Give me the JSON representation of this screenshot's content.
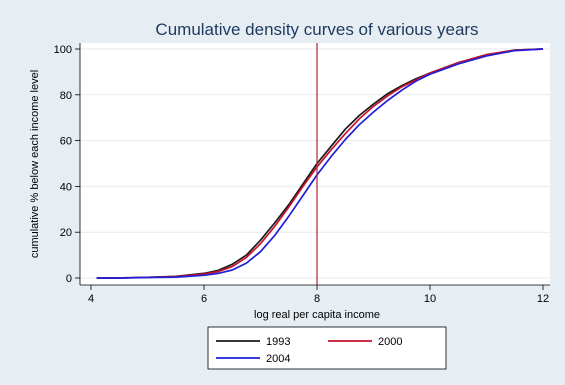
{
  "chart_data": {
    "type": "line",
    "title": "Cumulative density curves of various years",
    "xlabel": "log real per capita income",
    "ylabel": "cumulative % below each income level",
    "xlim": [
      4,
      12
    ],
    "ylim": [
      0,
      100
    ],
    "xticks": [
      4,
      6,
      8,
      10,
      12
    ],
    "yticks": [
      0,
      20,
      40,
      60,
      80,
      100
    ],
    "grid": "horizontal",
    "legend_position": "bottom",
    "reference_line": {
      "x": 8,
      "color": "#b22234"
    },
    "series": [
      {
        "name": "1993",
        "color": "#1a1a1a",
        "points": [
          [
            4.1,
            0
          ],
          [
            4.5,
            0
          ],
          [
            5,
            0.3
          ],
          [
            5.5,
            0.7
          ],
          [
            6,
            2.0
          ],
          [
            6.25,
            3.3
          ],
          [
            6.5,
            6.0
          ],
          [
            6.75,
            10.0
          ],
          [
            7,
            16.5
          ],
          [
            7.25,
            24
          ],
          [
            7.5,
            32
          ],
          [
            7.75,
            41
          ],
          [
            8,
            50
          ],
          [
            8.25,
            57.5
          ],
          [
            8.5,
            65
          ],
          [
            8.75,
            71
          ],
          [
            9,
            76
          ],
          [
            9.25,
            80.5
          ],
          [
            9.5,
            84
          ],
          [
            9.75,
            87
          ],
          [
            10,
            89.5
          ],
          [
            10.5,
            94
          ],
          [
            11,
            97.5
          ],
          [
            11.5,
            99.5
          ],
          [
            12,
            100
          ]
        ]
      },
      {
        "name": "2000",
        "color": "#c8102e",
        "points": [
          [
            4.1,
            0
          ],
          [
            4.5,
            0
          ],
          [
            5,
            0.3
          ],
          [
            5.5,
            0.6
          ],
          [
            6,
            1.7
          ],
          [
            6.25,
            2.8
          ],
          [
            6.5,
            5.0
          ],
          [
            6.75,
            9.0
          ],
          [
            7,
            15.0
          ],
          [
            7.25,
            22.5
          ],
          [
            7.5,
            31
          ],
          [
            7.75,
            40
          ],
          [
            8,
            48.5
          ],
          [
            8.25,
            56
          ],
          [
            8.5,
            63
          ],
          [
            8.75,
            69.5
          ],
          [
            9,
            75
          ],
          [
            9.25,
            79.5
          ],
          [
            9.5,
            83.5
          ],
          [
            9.75,
            86.5
          ],
          [
            10,
            89.5
          ],
          [
            10.5,
            94
          ],
          [
            11,
            97.5
          ],
          [
            11.5,
            99.5
          ],
          [
            12,
            100
          ]
        ]
      },
      {
        "name": "2004",
        "color": "#1f1fd8",
        "points": [
          [
            4.1,
            0
          ],
          [
            4.5,
            0
          ],
          [
            5,
            0.2
          ],
          [
            5.5,
            0.4
          ],
          [
            6,
            1.2
          ],
          [
            6.25,
            2.0
          ],
          [
            6.5,
            3.5
          ],
          [
            6.75,
            6.5
          ],
          [
            7,
            11.5
          ],
          [
            7.25,
            18.5
          ],
          [
            7.5,
            27
          ],
          [
            7.75,
            36
          ],
          [
            8,
            45
          ],
          [
            8.25,
            53
          ],
          [
            8.5,
            60.5
          ],
          [
            8.75,
            67
          ],
          [
            9,
            72.5
          ],
          [
            9.25,
            77.5
          ],
          [
            9.5,
            82
          ],
          [
            9.75,
            86
          ],
          [
            10,
            89
          ],
          [
            10.5,
            93.5
          ],
          [
            11,
            97
          ],
          [
            11.5,
            99.3
          ],
          [
            12,
            100
          ]
        ]
      }
    ]
  }
}
